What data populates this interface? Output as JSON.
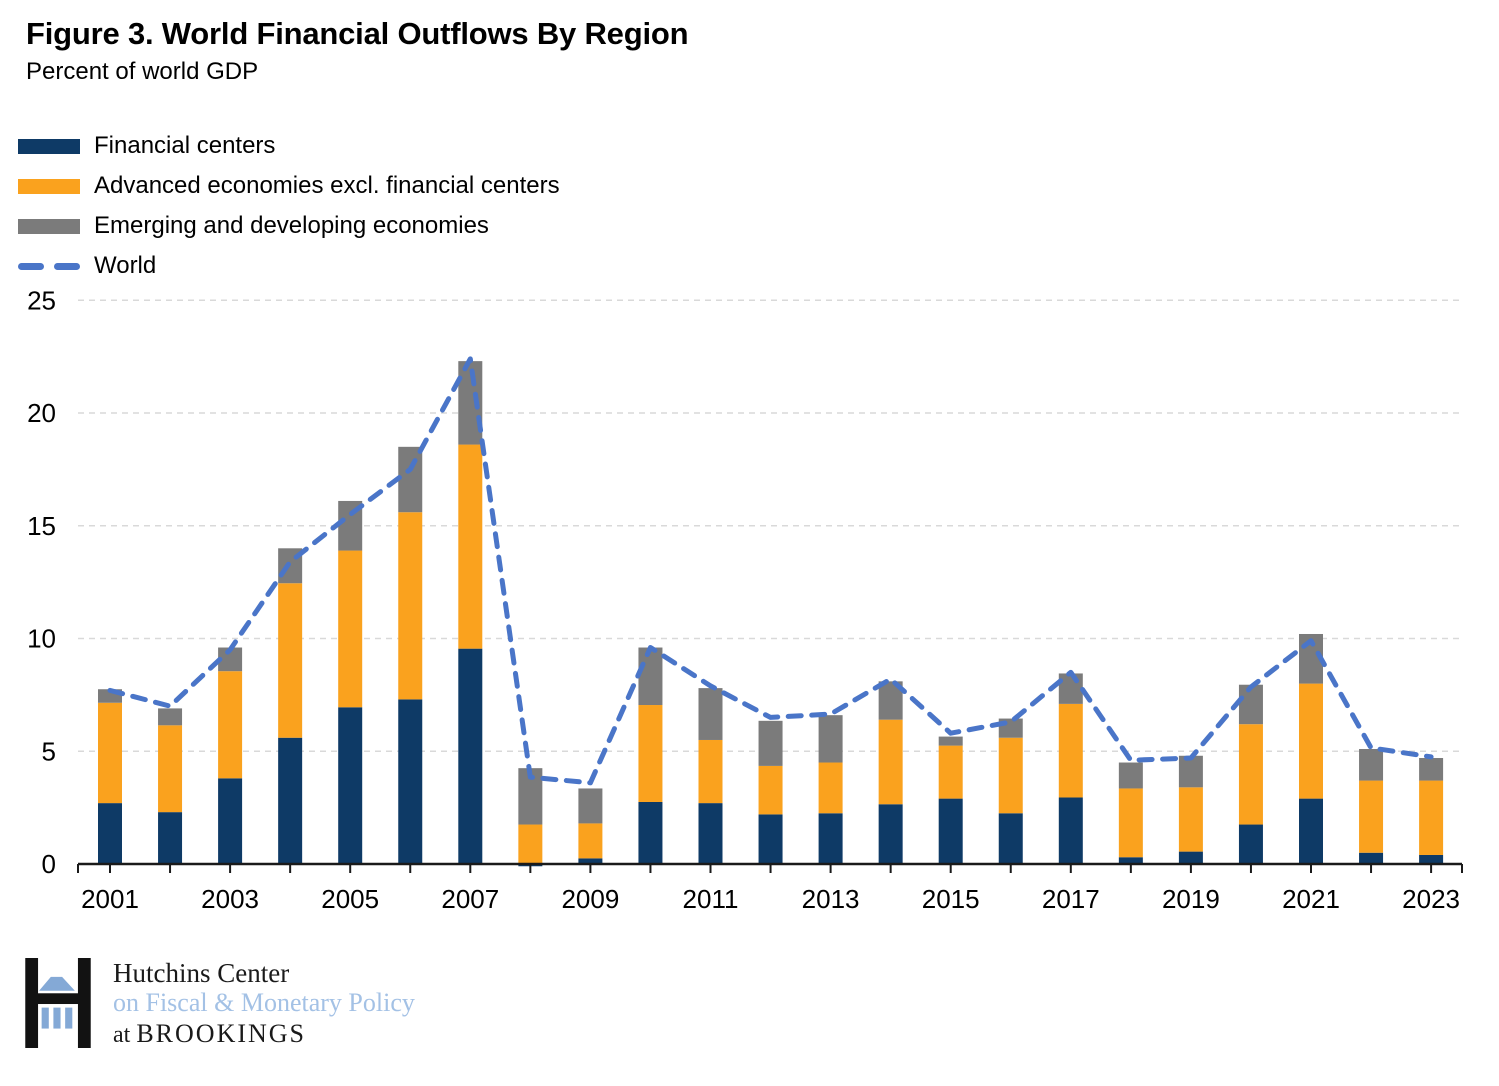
{
  "title": "Figure 3. World Financial Outflows By Region",
  "subtitle": "Percent of world GDP",
  "legend": [
    {
      "label": "Financial centers",
      "color": "#0e3a66",
      "swatch": "box"
    },
    {
      "label": "Advanced economies excl. financial centers",
      "color": "#faa21e",
      "swatch": "box"
    },
    {
      "label": "Emerging and developing economies",
      "color": "#7b7b7b",
      "swatch": "box"
    },
    {
      "label": "World",
      "color": "#4a75c8",
      "swatch": "dashed-line"
    }
  ],
  "chart_data": {
    "type": "bar",
    "stacked": true,
    "title": "Figure 3. World Financial Outflows By Region",
    "ylabel": "Percent of world GDP",
    "xlabel": "",
    "ylim": [
      0,
      25
    ],
    "y_ticks": [
      0,
      5,
      10,
      15,
      20,
      25
    ],
    "grid": "horizontal-dashed",
    "legend_position": "top-left",
    "x_label_every": 2,
    "categories": [
      "2001",
      "2002",
      "2003",
      "2004",
      "2005",
      "2006",
      "2007",
      "2008",
      "2009",
      "2010",
      "2011",
      "2012",
      "2013",
      "2014",
      "2015",
      "2016",
      "2017",
      "2018",
      "2019",
      "2020",
      "2021",
      "2022",
      "2023"
    ],
    "series": [
      {
        "name": "Financial centers",
        "type": "bar",
        "color": "#0e3a66",
        "values": [
          2.7,
          2.3,
          3.8,
          5.6,
          6.95,
          7.3,
          9.55,
          -0.1,
          0.25,
          2.75,
          2.7,
          2.2,
          2.25,
          2.65,
          2.9,
          2.25,
          2.95,
          0.3,
          0.55,
          1.75,
          2.9,
          0.5,
          0.4
        ]
      },
      {
        "name": "Advanced economies excl. financial centers",
        "type": "bar",
        "color": "#faa21e",
        "values": [
          4.45,
          3.85,
          4.75,
          6.85,
          6.95,
          8.3,
          9.05,
          1.75,
          1.55,
          4.3,
          2.8,
          2.15,
          2.25,
          3.75,
          2.35,
          3.35,
          4.15,
          3.05,
          2.85,
          4.45,
          5.1,
          3.2,
          3.3
        ]
      },
      {
        "name": "Emerging and developing economies",
        "type": "bar",
        "color": "#7b7b7b",
        "values": [
          0.6,
          0.75,
          1.05,
          1.55,
          2.2,
          2.9,
          3.7,
          2.5,
          1.55,
          2.55,
          2.3,
          2.0,
          2.1,
          1.7,
          0.4,
          0.85,
          1.35,
          1.15,
          1.4,
          1.75,
          2.2,
          1.4,
          1.0
        ]
      },
      {
        "name": "World",
        "type": "line",
        "style": "dashed",
        "color": "#4a75c8",
        "values": [
          7.7,
          7.0,
          9.5,
          13.4,
          15.5,
          17.5,
          22.4,
          3.85,
          3.6,
          9.6,
          7.9,
          6.5,
          6.65,
          8.2,
          5.8,
          6.3,
          8.5,
          4.6,
          4.7,
          7.85,
          9.9,
          5.15,
          4.75
        ]
      }
    ],
    "axis_color": "#1a1a1a",
    "gridline_color": "#d9d9d9"
  },
  "footer": {
    "org": "Hutchins Center",
    "org_subtitle": "on Fiscal & Monetary Policy",
    "at": "at",
    "brand": "BROOKINGS",
    "colors": {
      "logo_black": "#121212",
      "logo_blue": "#84a9d6",
      "text_blue": "#a3c1e5"
    }
  }
}
